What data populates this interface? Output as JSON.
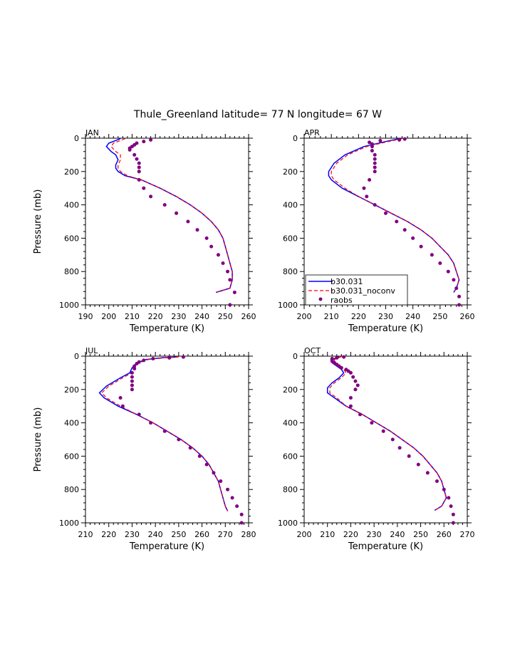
{
  "title": "Thule_Greenland  latitude= 77 N longitude= 67 W",
  "colors": {
    "model": "#0000ff",
    "noconv": "#ff0000",
    "raobs": "#800080"
  },
  "legend": {
    "model": "b30.031",
    "noconv": "b30.031_noconv",
    "raobs": "raobs"
  },
  "chart_data": [
    {
      "type": "line",
      "panel": "JAN",
      "xlabel": "Temperature (K)",
      "ylabel": "Pressure (mb)",
      "xlim": [
        190,
        260
      ],
      "ylim": [
        1000,
        0
      ],
      "xticks": [
        190,
        200,
        210,
        220,
        230,
        240,
        250,
        260
      ],
      "yticks": [
        0,
        200,
        400,
        600,
        800,
        1000
      ],
      "show_legend": false,
      "model": [
        [
          205,
          3
        ],
        [
          200,
          30
        ],
        [
          199,
          50
        ],
        [
          201,
          80
        ],
        [
          203,
          100
        ],
        [
          204,
          130
        ],
        [
          203,
          160
        ],
        [
          203,
          180
        ],
        [
          204,
          200
        ],
        [
          207,
          225
        ],
        [
          214,
          250
        ],
        [
          222,
          300
        ],
        [
          229,
          350
        ],
        [
          235,
          400
        ],
        [
          240,
          450
        ],
        [
          244,
          500
        ],
        [
          247,
          550
        ],
        [
          249,
          600
        ],
        [
          250,
          650
        ],
        [
          251,
          700
        ],
        [
          252,
          750
        ],
        [
          253,
          800
        ],
        [
          253,
          850
        ],
        [
          252,
          900
        ],
        [
          246,
          925
        ]
      ],
      "noconv": [
        [
          207,
          3
        ],
        [
          202,
          30
        ],
        [
          201,
          50
        ],
        [
          203,
          80
        ],
        [
          205,
          100
        ],
        [
          205,
          130
        ],
        [
          204,
          160
        ],
        [
          204,
          180
        ],
        [
          205,
          200
        ],
        [
          208,
          225
        ],
        [
          214,
          250
        ],
        [
          222,
          300
        ],
        [
          229,
          350
        ],
        [
          235,
          400
        ],
        [
          240,
          450
        ],
        [
          244,
          500
        ],
        [
          247,
          550
        ],
        [
          249,
          600
        ],
        [
          250,
          650
        ],
        [
          251,
          700
        ],
        [
          252,
          750
        ],
        [
          253,
          800
        ],
        [
          253,
          850
        ],
        [
          252,
          900
        ],
        [
          246,
          925
        ]
      ],
      "raobs": [
        [
          218,
          10
        ],
        [
          215,
          20
        ],
        [
          212,
          30
        ],
        [
          211,
          40
        ],
        [
          210,
          50
        ],
        [
          209,
          60
        ],
        [
          209,
          70
        ],
        [
          211,
          100
        ],
        [
          212,
          125
        ],
        [
          213,
          150
        ],
        [
          213,
          175
        ],
        [
          213,
          200
        ],
        [
          213,
          250
        ],
        [
          215,
          300
        ],
        [
          218,
          350
        ],
        [
          224,
          400
        ],
        [
          229,
          450
        ],
        [
          234,
          500
        ],
        [
          238,
          550
        ],
        [
          242,
          600
        ],
        [
          244,
          650
        ],
        [
          247,
          700
        ],
        [
          249,
          750
        ],
        [
          251,
          800
        ],
        [
          252,
          850
        ],
        [
          254,
          925
        ],
        [
          252,
          1000
        ]
      ]
    },
    {
      "type": "line",
      "panel": "APR",
      "xlabel": "Temperature (K)",
      "ylabel": "",
      "xlim": [
        200,
        260
      ],
      "ylim": [
        1000,
        0
      ],
      "xticks": [
        200,
        210,
        220,
        230,
        240,
        250,
        260
      ],
      "yticks": [
        0,
        200,
        400,
        600,
        800,
        1000
      ],
      "show_legend": true,
      "model": [
        [
          235,
          3
        ],
        [
          230,
          20
        ],
        [
          222,
          50
        ],
        [
          215,
          100
        ],
        [
          211,
          150
        ],
        [
          209,
          200
        ],
        [
          209,
          225
        ],
        [
          210,
          250
        ],
        [
          214,
          300
        ],
        [
          220,
          350
        ],
        [
          226,
          400
        ],
        [
          232,
          450
        ],
        [
          238,
          500
        ],
        [
          243,
          550
        ],
        [
          247,
          600
        ],
        [
          250,
          650
        ],
        [
          253,
          700
        ],
        [
          255,
          750
        ],
        [
          256,
          800
        ],
        [
          257,
          850
        ],
        [
          256,
          900
        ],
        [
          255,
          925
        ]
      ],
      "noconv": [
        [
          236,
          3
        ],
        [
          231,
          20
        ],
        [
          223,
          50
        ],
        [
          216,
          100
        ],
        [
          212,
          150
        ],
        [
          210,
          200
        ],
        [
          210,
          225
        ],
        [
          211,
          250
        ],
        [
          215,
          300
        ],
        [
          220,
          350
        ],
        [
          226,
          400
        ],
        [
          232,
          450
        ],
        [
          238,
          500
        ],
        [
          243,
          550
        ],
        [
          247,
          600
        ],
        [
          250,
          650
        ],
        [
          253,
          700
        ],
        [
          255,
          750
        ],
        [
          256,
          800
        ],
        [
          257,
          850
        ],
        [
          256,
          900
        ],
        [
          255,
          925
        ]
      ],
      "raobs": [
        [
          237,
          5
        ],
        [
          235,
          10
        ],
        [
          228,
          15
        ],
        [
          224,
          25
        ],
        [
          225,
          35
        ],
        [
          225,
          50
        ],
        [
          225,
          75
        ],
        [
          226,
          100
        ],
        [
          226,
          125
        ],
        [
          226,
          150
        ],
        [
          226,
          175
        ],
        [
          226,
          200
        ],
        [
          224,
          250
        ],
        [
          222,
          300
        ],
        [
          223,
          350
        ],
        [
          226,
          400
        ],
        [
          230,
          450
        ],
        [
          234,
          500
        ],
        [
          237,
          550
        ],
        [
          240,
          600
        ],
        [
          243,
          650
        ],
        [
          247,
          700
        ],
        [
          250,
          750
        ],
        [
          253,
          800
        ],
        [
          255,
          850
        ],
        [
          256,
          900
        ],
        [
          257,
          950
        ],
        [
          257,
          1000
        ]
      ]
    },
    {
      "type": "line",
      "panel": "JUL",
      "xlabel": "Temperature (K)",
      "ylabel": "Pressure (mb)",
      "xlim": [
        210,
        280
      ],
      "ylim": [
        1000,
        0
      ],
      "xticks": [
        210,
        220,
        230,
        240,
        250,
        260,
        270,
        280
      ],
      "yticks": [
        0,
        200,
        400,
        600,
        800,
        1000
      ],
      "show_legend": false,
      "model": [
        [
          249,
          5
        ],
        [
          243,
          10
        ],
        [
          236,
          20
        ],
        [
          232,
          40
        ],
        [
          230,
          70
        ],
        [
          229,
          100
        ],
        [
          225,
          130
        ],
        [
          219,
          180
        ],
        [
          216,
          220
        ],
        [
          218,
          250
        ],
        [
          224,
          300
        ],
        [
          232,
          350
        ],
        [
          239,
          400
        ],
        [
          245,
          450
        ],
        [
          251,
          500
        ],
        [
          256,
          550
        ],
        [
          260,
          600
        ],
        [
          263,
          650
        ],
        [
          265,
          700
        ],
        [
          267,
          750
        ],
        [
          268,
          800
        ],
        [
          269,
          850
        ],
        [
          270,
          900
        ],
        [
          271,
          930
        ]
      ],
      "noconv": [
        [
          250,
          5
        ],
        [
          244,
          10
        ],
        [
          237,
          20
        ],
        [
          233,
          40
        ],
        [
          231,
          70
        ],
        [
          230,
          100
        ],
        [
          226,
          130
        ],
        [
          220,
          180
        ],
        [
          217,
          220
        ],
        [
          219,
          250
        ],
        [
          225,
          300
        ],
        [
          232,
          350
        ],
        [
          239,
          400
        ],
        [
          245,
          450
        ],
        [
          251,
          500
        ],
        [
          256,
          550
        ],
        [
          260,
          600
        ],
        [
          263,
          650
        ],
        [
          265,
          700
        ],
        [
          267,
          750
        ],
        [
          268,
          800
        ],
        [
          269,
          850
        ],
        [
          270,
          900
        ],
        [
          271,
          930
        ]
      ],
      "raobs": [
        [
          252,
          5
        ],
        [
          246,
          10
        ],
        [
          239,
          15
        ],
        [
          235,
          25
        ],
        [
          233,
          35
        ],
        [
          232,
          45
        ],
        [
          231,
          60
        ],
        [
          231,
          75
        ],
        [
          230,
          100
        ],
        [
          230,
          125
        ],
        [
          230,
          150
        ],
        [
          230,
          175
        ],
        [
          230,
          200
        ],
        [
          225,
          250
        ],
        [
          226,
          300
        ],
        [
          233,
          350
        ],
        [
          238,
          400
        ],
        [
          244,
          450
        ],
        [
          250,
          500
        ],
        [
          255,
          550
        ],
        [
          259,
          600
        ],
        [
          262,
          650
        ],
        [
          265,
          700
        ],
        [
          268,
          750
        ],
        [
          271,
          800
        ],
        [
          273,
          850
        ],
        [
          275,
          900
        ],
        [
          277,
          950
        ],
        [
          277,
          1000
        ]
      ]
    },
    {
      "type": "line",
      "panel": "OCT",
      "xlabel": "Temperature (K)",
      "ylabel": "",
      "xlim": [
        200,
        270
      ],
      "ylim": [
        1000,
        0
      ],
      "xticks": [
        200,
        210,
        220,
        230,
        240,
        250,
        260,
        270
      ],
      "yticks": [
        0,
        200,
        400,
        600,
        800,
        1000
      ],
      "show_legend": false,
      "model": [
        [
          215,
          3
        ],
        [
          212,
          20
        ],
        [
          212,
          40
        ],
        [
          214,
          60
        ],
        [
          216,
          80
        ],
        [
          217,
          100
        ],
        [
          215,
          130
        ],
        [
          212,
          160
        ],
        [
          210,
          190
        ],
        [
          210,
          220
        ],
        [
          213,
          250
        ],
        [
          218,
          300
        ],
        [
          225,
          350
        ],
        [
          231,
          400
        ],
        [
          237,
          450
        ],
        [
          242,
          500
        ],
        [
          247,
          550
        ],
        [
          251,
          600
        ],
        [
          254,
          650
        ],
        [
          257,
          700
        ],
        [
          259,
          750
        ],
        [
          260,
          800
        ],
        [
          261,
          850
        ],
        [
          259,
          900
        ],
        [
          256,
          925
        ]
      ],
      "noconv": [
        [
          216,
          3
        ],
        [
          213,
          20
        ],
        [
          213,
          40
        ],
        [
          215,
          60
        ],
        [
          217,
          80
        ],
        [
          218,
          100
        ],
        [
          216,
          130
        ],
        [
          213,
          160
        ],
        [
          211,
          190
        ],
        [
          211,
          220
        ],
        [
          214,
          250
        ],
        [
          218,
          300
        ],
        [
          225,
          350
        ],
        [
          231,
          400
        ],
        [
          237,
          450
        ],
        [
          242,
          500
        ],
        [
          247,
          550
        ],
        [
          251,
          600
        ],
        [
          254,
          650
        ],
        [
          257,
          700
        ],
        [
          259,
          750
        ],
        [
          260,
          800
        ],
        [
          261,
          850
        ],
        [
          259,
          900
        ],
        [
          256,
          925
        ]
      ],
      "raobs": [
        [
          217,
          5
        ],
        [
          214,
          10
        ],
        [
          212,
          15
        ],
        [
          212,
          20
        ],
        [
          212,
          30
        ],
        [
          213,
          40
        ],
        [
          214,
          50
        ],
        [
          215,
          60
        ],
        [
          216,
          70
        ],
        [
          218,
          80
        ],
        [
          219,
          90
        ],
        [
          220,
          100
        ],
        [
          221,
          125
        ],
        [
          222,
          150
        ],
        [
          223,
          175
        ],
        [
          222,
          200
        ],
        [
          220,
          250
        ],
        [
          220,
          300
        ],
        [
          224,
          350
        ],
        [
          229,
          400
        ],
        [
          234,
          450
        ],
        [
          238,
          500
        ],
        [
          241,
          550
        ],
        [
          245,
          600
        ],
        [
          249,
          650
        ],
        [
          253,
          700
        ],
        [
          257,
          750
        ],
        [
          260,
          800
        ],
        [
          262,
          850
        ],
        [
          263,
          900
        ],
        [
          264,
          950
        ],
        [
          264,
          1000
        ]
      ]
    }
  ]
}
